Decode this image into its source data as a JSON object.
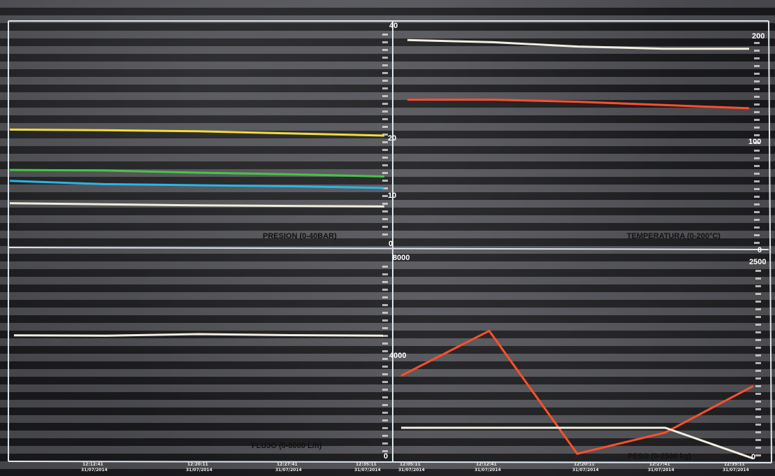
{
  "chart_data": [
    {
      "type": "line",
      "title": "PRESION (0-40BAR)",
      "ylim": [
        0,
        40
      ],
      "y_ticks": [
        "40",
        "20",
        "10",
        "0"
      ],
      "x": [
        "12:05:11",
        "12:12:41",
        "12:20:11",
        "12:27:41",
        "12:35:11"
      ],
      "series": [
        {
          "color": "#f2dc3a",
          "values": [
            21.1,
            21.0,
            20.8,
            20.4,
            20.0
          ]
        },
        {
          "color": "#47c447",
          "values": [
            13.7,
            13.6,
            13.2,
            12.9,
            12.5
          ]
        },
        {
          "color": "#27b6ea",
          "values": [
            11.7,
            11.1,
            10.9,
            10.7,
            10.4
          ]
        },
        {
          "color": "#f0ecd8",
          "values": [
            7.6,
            7.4,
            7.2,
            7.1,
            7.0
          ]
        }
      ]
    },
    {
      "type": "line",
      "title": "TEMPERATURA (0-200°C)",
      "ylim": [
        0,
        200
      ],
      "y_ticks": [
        "200",
        "100",
        "0"
      ],
      "x": [
        "12:05:11",
        "12:12:41",
        "12:20:11",
        "12:27:41",
        "12:35:11"
      ],
      "series": [
        {
          "color": "#f3eee0",
          "values": [
            194,
            192,
            188,
            186,
            186
          ]
        },
        {
          "color": "#ff4f2c",
          "values": [
            139,
            139,
            137,
            134,
            131
          ]
        }
      ]
    },
    {
      "type": "line",
      "title": "FLUJO (0-8000 L/h)",
      "ylim": [
        0,
        8000
      ],
      "y_ticks": [
        "8000",
        "4000",
        "0"
      ],
      "x": [
        "12:05:11",
        "12:12:41",
        "12:20:11",
        "12:27:41",
        "12:35:11"
      ],
      "series": [
        {
          "color": "#f3eee0",
          "values": [
            4850,
            4840,
            4900,
            4860,
            4840
          ]
        }
      ]
    },
    {
      "type": "line",
      "title": "PESO (0-2500 kg)",
      "ylim": [
        0,
        2500
      ],
      "y_ticks": [
        "2500",
        "0"
      ],
      "x": [
        "12:05:11",
        "12:12:41",
        "12:20:11",
        "12:27:41",
        "12:35:11"
      ],
      "series": [
        {
          "color": "#ff4f2c",
          "values": [
            1050,
            1620,
            60,
            330,
            920
          ]
        },
        {
          "color": "#f3eee0",
          "values": [
            390,
            390,
            390,
            390,
            0
          ]
        }
      ]
    }
  ],
  "time_axis": {
    "labels": [
      "12:05:11",
      "12:12:41",
      "12:20:11",
      "12:27:41",
      "12:35:11"
    ],
    "date": "31/07/2014"
  }
}
